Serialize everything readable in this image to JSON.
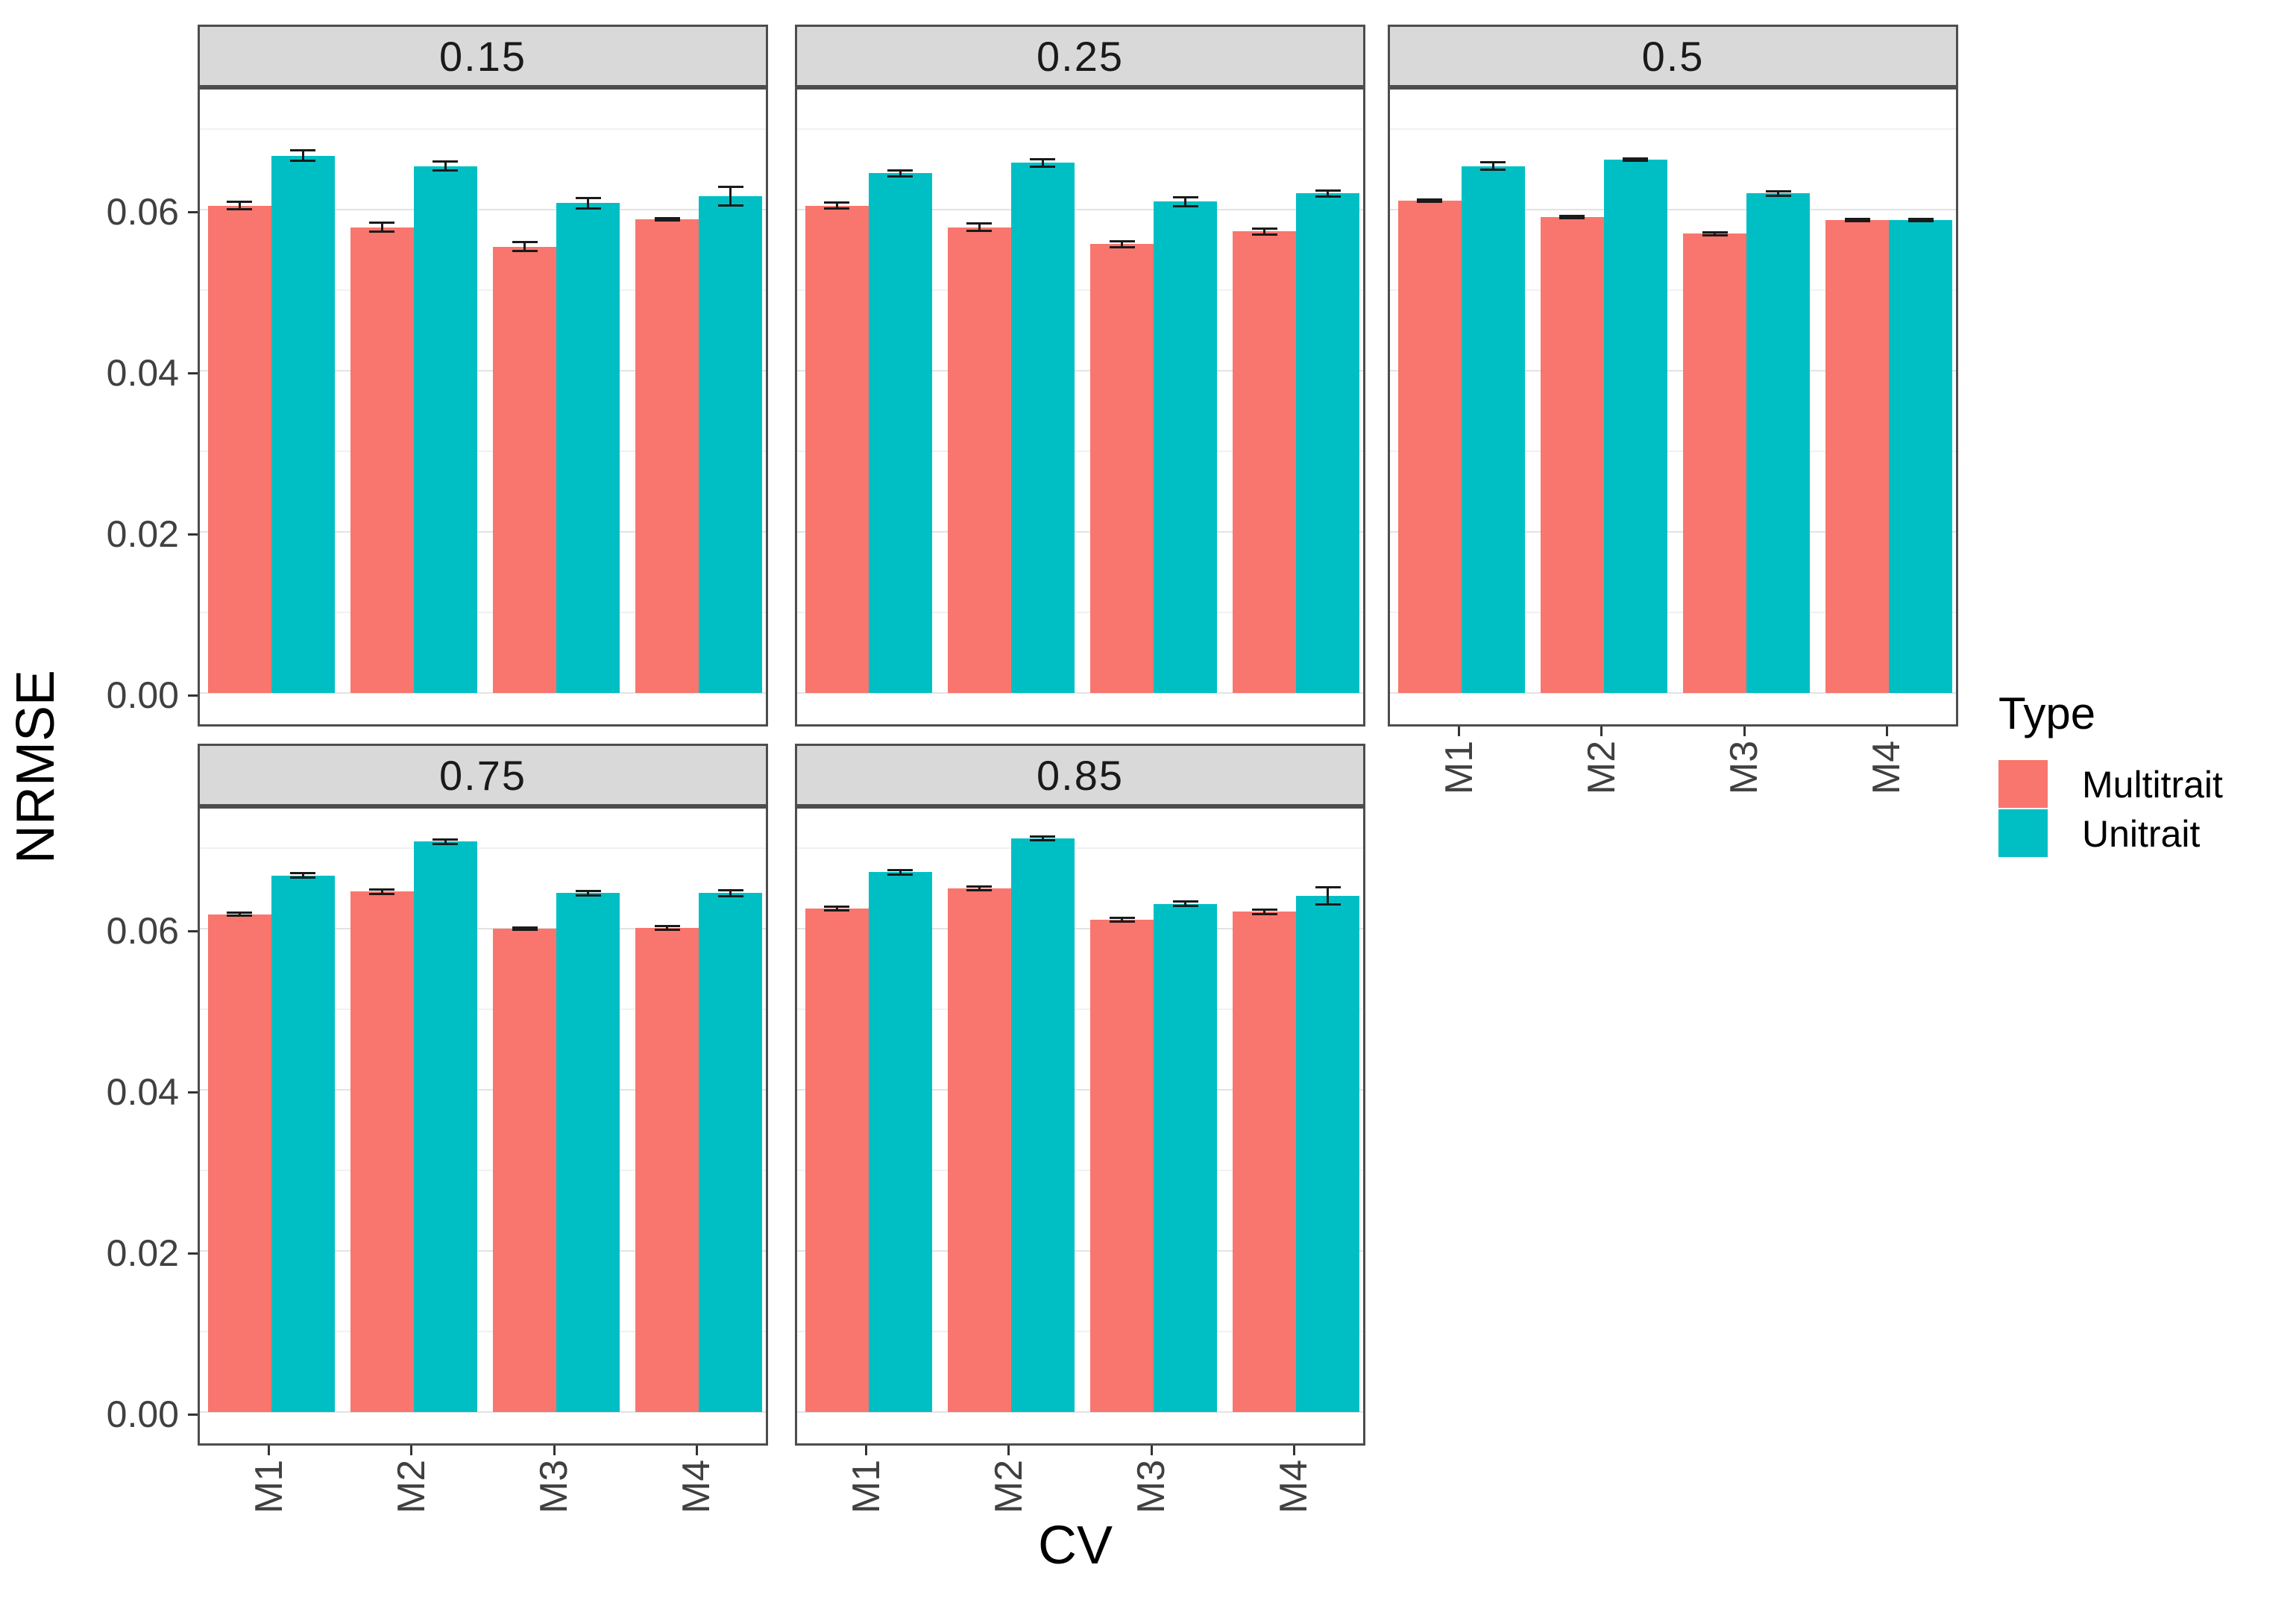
{
  "chart_data": {
    "type": "bar",
    "title": "",
    "ylabel": "NRMSE",
    "xlabel": "CV",
    "facet_labels": [
      "0.15",
      "0.25",
      "0.5",
      "0.75",
      "0.85"
    ],
    "categories": [
      "M1",
      "M2",
      "M3",
      "M4"
    ],
    "y_tick_labels": [
      "0.00",
      "0.02",
      "0.04",
      "0.06"
    ],
    "y_major_values": [
      0.0,
      0.02,
      0.04,
      0.06
    ],
    "y_minor_values": [
      0.01,
      0.03,
      0.05,
      0.07
    ],
    "ylim": [
      -0.004,
      0.0755
    ],
    "grid": true,
    "legend": {
      "title": "Type",
      "position": "right",
      "items": [
        {
          "label": "Multitrait",
          "color": "#F8766D"
        },
        {
          "label": "Unitrait",
          "color": "#00BFC4"
        }
      ]
    },
    "facets": [
      {
        "label": "0.15",
        "grid_row": 0,
        "grid_col": 0,
        "x_axis_visible": false,
        "series": [
          {
            "name": "Multitrait",
            "color": "#F8766D",
            "values": [
              0.0605,
              0.0578,
              0.0554,
              0.0588
            ],
            "errors": [
              0.0006,
              0.0007,
              0.0007,
              0.0003
            ]
          },
          {
            "name": "Unitrait",
            "color": "#00BFC4",
            "values": [
              0.0667,
              0.0654,
              0.0608,
              0.0617
            ],
            "errors": [
              0.0008,
              0.0007,
              0.0008,
              0.0013
            ]
          }
        ]
      },
      {
        "label": "0.25",
        "grid_row": 0,
        "grid_col": 1,
        "x_axis_visible": false,
        "series": [
          {
            "name": "Multitrait",
            "color": "#F8766D",
            "values": [
              0.0605,
              0.0578,
              0.0557,
              0.0573
            ],
            "errors": [
              0.0005,
              0.0006,
              0.0005,
              0.0005
            ]
          },
          {
            "name": "Unitrait",
            "color": "#00BFC4",
            "values": [
              0.0645,
              0.0658,
              0.061,
              0.062
            ],
            "errors": [
              0.0005,
              0.0006,
              0.0007,
              0.0005
            ]
          }
        ]
      },
      {
        "label": "0.5",
        "grid_row": 0,
        "grid_col": 2,
        "x_axis_visible": true,
        "series": [
          {
            "name": "Multitrait",
            "color": "#F8766D",
            "values": [
              0.0611,
              0.0591,
              0.057,
              0.0587
            ],
            "errors": [
              0.0003,
              0.0003,
              0.0003,
              0.0003
            ]
          },
          {
            "name": "Unitrait",
            "color": "#00BFC4",
            "values": [
              0.0654,
              0.0662,
              0.062,
              0.0587
            ],
            "errors": [
              0.0006,
              0.0003,
              0.0004,
              0.0003
            ]
          }
        ]
      },
      {
        "label": "0.75",
        "grid_row": 1,
        "grid_col": 0,
        "x_axis_visible": true,
        "series": [
          {
            "name": "Multitrait",
            "color": "#F8766D",
            "values": [
              0.0618,
              0.0646,
              0.06,
              0.0601
            ],
            "errors": [
              0.0003,
              0.0004,
              0.0003,
              0.0004
            ]
          },
          {
            "name": "Unitrait",
            "color": "#00BFC4",
            "values": [
              0.0666,
              0.0708,
              0.0644,
              0.0644
            ],
            "errors": [
              0.0004,
              0.0004,
              0.0004,
              0.0005
            ]
          }
        ]
      },
      {
        "label": "0.85",
        "grid_row": 1,
        "grid_col": 1,
        "x_axis_visible": true,
        "series": [
          {
            "name": "Multitrait",
            "color": "#F8766D",
            "values": [
              0.0625,
              0.065,
              0.0611,
              0.0621
            ],
            "errors": [
              0.0004,
              0.0004,
              0.0004,
              0.0004
            ]
          },
          {
            "name": "Unitrait",
            "color": "#00BFC4",
            "values": [
              0.067,
              0.0712,
              0.0631,
              0.0641
            ],
            "errors": [
              0.0004,
              0.0004,
              0.0004,
              0.0012
            ]
          }
        ]
      }
    ],
    "style": {
      "bar_color_multitrait": "#F8766D",
      "bar_color_unitrait": "#00BFC4",
      "strip_bg": "#D9D9D9",
      "strip_border": "#4D4D4D",
      "panel_border": "#4D4D4D",
      "grid_major": "#E3E3E3",
      "grid_minor": "#F1F1F1",
      "axis_text_color": "#404040",
      "error_bar_color": "#1A1A1A"
    }
  }
}
